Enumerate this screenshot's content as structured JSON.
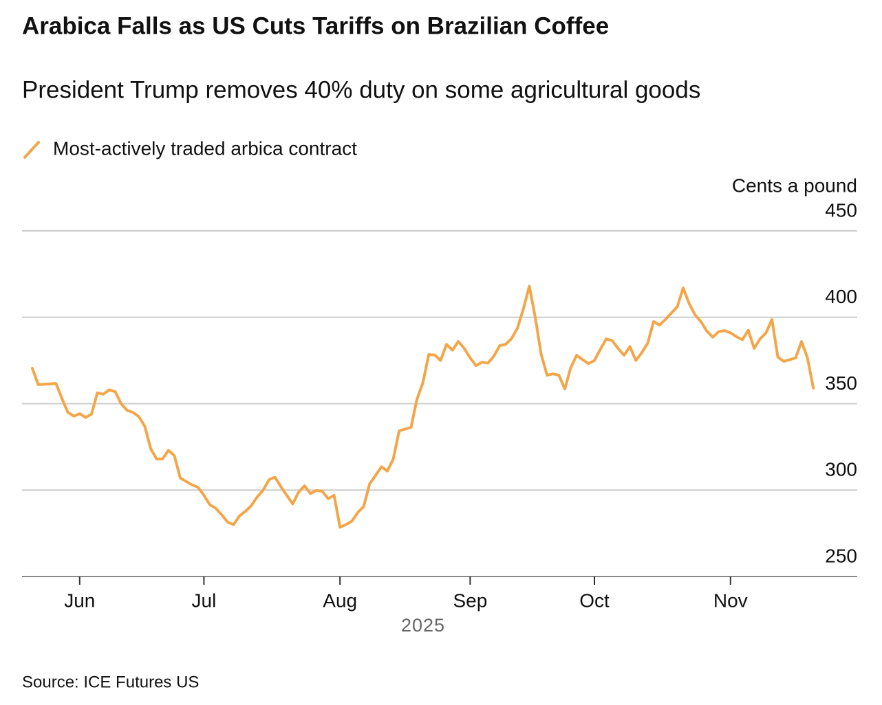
{
  "chart_data": {
    "type": "line",
    "title": "Arabica Falls as US Cuts Tariffs on Brazilian Coffee",
    "subtitle": "President Trump removes 40% duty on some agricultural goods",
    "y_label": "Cents a pound",
    "x_label": "2025",
    "source": "Source: ICE Futures US",
    "categories": [
      null,
      null,
      null,
      null,
      null,
      null,
      null,
      null,
      "Jun",
      null,
      null,
      null,
      null,
      null,
      null,
      null,
      null,
      null,
      null,
      null,
      null,
      null,
      null,
      null,
      null,
      null,
      null,
      null,
      null,
      "Jul",
      null,
      null,
      null,
      null,
      null,
      null,
      null,
      null,
      null,
      null,
      null,
      null,
      null,
      null,
      null,
      null,
      null,
      null,
      null,
      null,
      null,
      null,
      "Aug",
      null,
      null,
      null,
      null,
      null,
      null,
      null,
      null,
      null,
      null,
      null,
      null,
      null,
      null,
      null,
      null,
      null,
      null,
      null,
      null,
      null,
      "Sep",
      null,
      null,
      null,
      null,
      null,
      null,
      null,
      null,
      null,
      null,
      null,
      null,
      null,
      null,
      null,
      null,
      null,
      null,
      null,
      null,
      "Oct",
      null,
      null,
      null,
      null,
      null,
      null,
      null,
      null,
      null,
      null,
      null,
      null,
      null,
      null,
      null,
      null,
      null,
      null,
      null,
      null,
      null,
      null,
      "Nov",
      null,
      null,
      null,
      null,
      null,
      null,
      null,
      null,
      null,
      null,
      null,
      null,
      null,
      null
    ],
    "series": [
      {
        "name": "Most-actively traded arbica contract",
        "color": "#f3a649",
        "values": [
          370.5,
          361,
          361.3,
          361.5,
          361.7,
          353,
          345,
          342.8,
          344.2,
          342,
          344,
          356.3,
          355.5,
          358,
          357,
          350,
          346.2,
          345,
          342.5,
          337,
          324,
          318,
          318,
          323,
          320,
          307,
          305,
          303,
          301.6,
          297,
          291.5,
          289.5,
          285.7,
          281.5,
          280,
          285,
          287.7,
          291,
          296,
          300,
          306,
          307.5,
          302,
          297,
          292,
          298.8,
          302.5,
          298,
          299.8,
          299.3,
          295,
          297,
          278.5,
          280,
          282,
          287,
          290.5,
          303.5,
          308.5,
          313.5,
          311,
          318,
          334.3,
          335.3,
          336.3,
          352.5,
          362,
          378.4,
          378.2,
          375,
          384.3,
          381,
          386,
          382,
          376.5,
          372,
          374,
          373.5,
          377.5,
          383.6,
          384.4,
          387.7,
          393.8,
          405,
          418,
          400,
          378.5,
          366.5,
          367.2,
          366.5,
          358.5,
          371,
          378,
          375.5,
          373.2,
          375,
          381.5,
          387.5,
          386.5,
          382,
          378,
          383,
          375,
          379.5,
          385,
          397.5,
          395.5,
          398.7,
          402.5,
          406,
          417,
          408,
          401.5,
          397.5,
          392,
          388.5,
          391.7,
          392.3,
          391,
          388.8,
          387,
          392.5,
          382,
          387.5,
          391,
          398.7,
          377,
          374.5,
          375.5,
          376.5,
          386,
          376.6,
          359
        ]
      }
    ],
    "ylim": [
      250,
      450
    ],
    "yticks": [
      250,
      300,
      350,
      400,
      450
    ],
    "grid": true
  }
}
